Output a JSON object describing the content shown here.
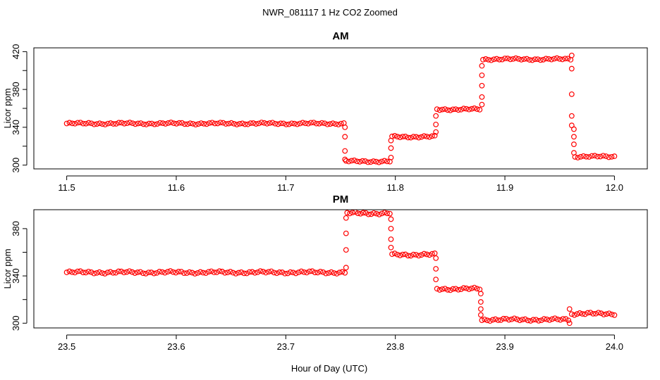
{
  "figure": {
    "title": "NWR_081117  1 Hz CO2 Zoomed",
    "xlabel": "Hour of Day (UTC)"
  },
  "chart_data": [
    {
      "type": "scatter",
      "title": "AM",
      "xlabel": "",
      "ylabel": "Licor ppm",
      "xlim": [
        11.47,
        12.03
      ],
      "ylim": [
        296,
        424
      ],
      "xticks": [
        "11.5",
        "11.6",
        "11.7",
        "11.8",
        "11.9",
        "12.0"
      ],
      "yticks": [
        "300",
        "340",
        "380",
        "420"
      ],
      "y_minor_ticks": [
        320,
        360,
        400
      ],
      "color": "#ff0000",
      "marker": "open-circle",
      "segments": [
        {
          "x_start": 11.5,
          "x_end": 11.753,
          "y": 344
        },
        {
          "x_start": 11.755,
          "x_end": 11.795,
          "y": 304
        },
        {
          "x_start": 11.797,
          "x_end": 11.836,
          "y": 330
        },
        {
          "x_start": 11.838,
          "x_end": 11.877,
          "y": 359
        },
        {
          "x_start": 11.88,
          "x_end": 11.96,
          "y": 412
        },
        {
          "x_start": 11.964,
          "x_end": 12.0,
          "y": 309
        }
      ],
      "transitions": [
        {
          "x": 11.754,
          "y": [
            340,
            330,
            315,
            306
          ]
        },
        {
          "x": 11.796,
          "y": [
            308,
            318,
            326
          ]
        },
        {
          "x": 11.837,
          "y": [
            335,
            343,
            352
          ]
        },
        {
          "x": 11.879,
          "y": [
            364,
            372,
            384,
            395,
            405
          ]
        },
        {
          "x": 11.961,
          "y": [
            416,
            402,
            375,
            352,
            342
          ]
        },
        {
          "x": 11.963,
          "y": [
            338,
            330,
            322,
            313
          ]
        }
      ]
    },
    {
      "type": "scatter",
      "title": "PM",
      "xlabel": "Hour of Day (UTC)",
      "ylabel": "Licor ppm",
      "xlim": [
        23.47,
        24.03
      ],
      "ylim": [
        296,
        396
      ],
      "xticks": [
        "23.5",
        "23.6",
        "23.7",
        "23.8",
        "23.9",
        "24.0"
      ],
      "yticks": [
        "300",
        "340",
        "380"
      ],
      "y_minor_ticks": [
        320,
        360
      ],
      "color": "#ff0000",
      "marker": "open-circle",
      "segments": [
        {
          "x_start": 23.5,
          "x_end": 23.754,
          "y": 343
        },
        {
          "x_start": 23.756,
          "x_end": 23.795,
          "y": 393
        },
        {
          "x_start": 23.797,
          "x_end": 23.836,
          "y": 358
        },
        {
          "x_start": 23.838,
          "x_end": 23.877,
          "y": 329
        },
        {
          "x_start": 23.879,
          "x_end": 23.958,
          "y": 303
        },
        {
          "x_start": 23.961,
          "x_end": 24.0,
          "y": 308
        }
      ],
      "transitions": [
        {
          "x": 23.755,
          "y": [
            347,
            362,
            376,
            389
          ]
        },
        {
          "x": 23.796,
          "y": [
            388,
            380,
            371,
            364
          ]
        },
        {
          "x": 23.837,
          "y": [
            355,
            346,
            337
          ]
        },
        {
          "x": 23.878,
          "y": [
            325,
            318,
            312,
            307
          ]
        },
        {
          "x": 23.959,
          "y": [
            300,
            312
          ]
        }
      ]
    }
  ]
}
